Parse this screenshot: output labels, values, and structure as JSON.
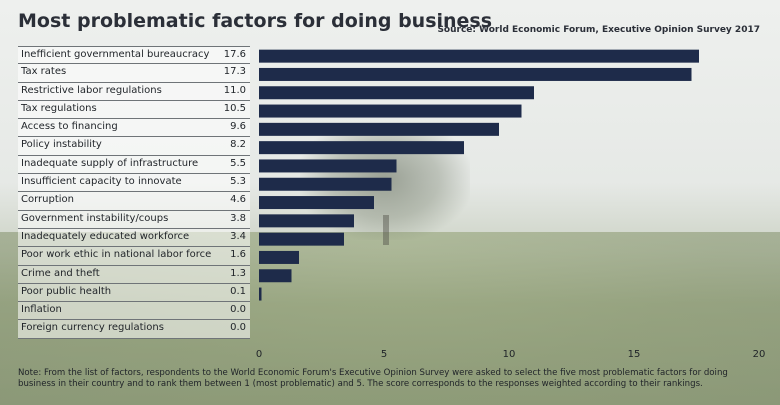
{
  "title": "Most problematic factors for doing business",
  "source": "Source: World Economic Forum, Executive Opinion Survey 2017",
  "note": "Note: From the list of factors, respondents to the World Economic Forum's Executive Opinion Survey were asked to select the five most problematic factors for doing business in their country and to rank them between 1 (most problematic) and 5. The score corresponds to the responses weighted according to their rankings.",
  "colors": {
    "bar": "#1e2b4a"
  },
  "chart_data": {
    "type": "bar",
    "orientation": "horizontal",
    "categories": [
      "Inefficient governmental bureaucracy",
      "Tax rates",
      "Restrictive labor regulations",
      "Tax regulations",
      "Access to financing",
      "Policy instability",
      "Inadequate supply of infrastructure",
      "Insufficient capacity to innovate",
      "Corruption",
      "Government instability/coups",
      "Inadequately educated workforce",
      "Poor work ethic in national labor force",
      "Crime and theft",
      "Poor public health",
      "Inflation",
      "Foreign currency regulations"
    ],
    "values": [
      17.6,
      17.3,
      11.0,
      10.5,
      9.6,
      8.2,
      5.5,
      5.3,
      4.6,
      3.8,
      3.4,
      1.6,
      1.3,
      0.1,
      0.0,
      0.0
    ],
    "value_labels": [
      "17.6",
      "17.3",
      "11.0",
      "10.5",
      "9.6",
      "8.2",
      "5.5",
      "5.3",
      "4.6",
      "3.8",
      "3.4",
      "1.6",
      "1.3",
      "0.1",
      "0.0",
      "0.0"
    ],
    "xlim": [
      0,
      20
    ],
    "xticks": [
      0,
      5,
      10,
      15,
      20
    ],
    "grid": false,
    "title": "Most problematic factors for doing business",
    "xlabel": "",
    "ylabel": ""
  }
}
